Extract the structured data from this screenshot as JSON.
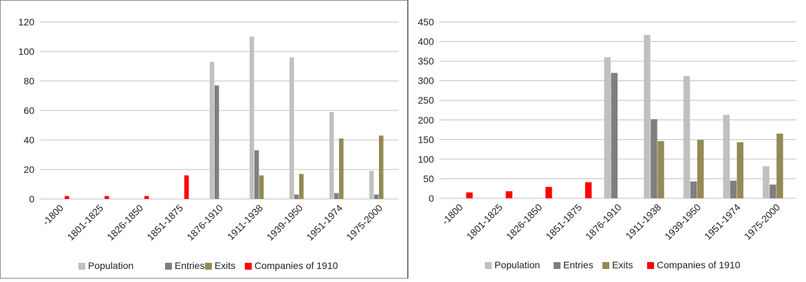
{
  "chart_data": [
    {
      "type": "bar",
      "categories": [
        "-1800",
        "1801-1825",
        "1826-1850",
        "1851-1875",
        "1876-1910",
        "1911-1938",
        "1939-1950",
        "1951-1974",
        "1975-2000"
      ],
      "ylim": [
        0,
        120
      ],
      "yticks": [
        0,
        20,
        40,
        60,
        80,
        100,
        120
      ],
      "grid": true,
      "legend": "bottom",
      "series": [
        {
          "name": "Population",
          "color": "#c0c0c0",
          "values": [
            0,
            0,
            0,
            0,
            93,
            110,
            96,
            59,
            19
          ]
        },
        {
          "name": "Entries",
          "color": "#7f7f7f",
          "values": [
            0,
            0,
            0,
            0,
            77,
            33,
            3,
            4,
            3
          ]
        },
        {
          "name": "Exits",
          "color": "#948a54",
          "values": [
            0,
            0,
            0,
            0,
            0,
            16,
            17,
            41,
            43
          ]
        },
        {
          "name": "Companies of 1910",
          "color": "#ff0000",
          "values": [
            2,
            2,
            2,
            16,
            0,
            0,
            0,
            0,
            0
          ]
        }
      ]
    },
    {
      "type": "bar",
      "categories": [
        "-1800",
        "1801-1825",
        "1826-1850",
        "1851-1875",
        "1876-1910",
        "1911-1938",
        "1939-1950",
        "1951-1974",
        "1975-2000"
      ],
      "ylim": [
        0,
        450
      ],
      "yticks": [
        0,
        50,
        100,
        150,
        200,
        250,
        300,
        350,
        400,
        450
      ],
      "grid": true,
      "legend": "bottom",
      "series": [
        {
          "name": "Population",
          "color": "#c0c0c0",
          "values": [
            0,
            0,
            0,
            0,
            360,
            417,
            312,
            213,
            82
          ]
        },
        {
          "name": "Entries",
          "color": "#7f7f7f",
          "values": [
            0,
            0,
            0,
            0,
            320,
            202,
            43,
            45,
            35
          ]
        },
        {
          "name": "Exits",
          "color": "#948a54",
          "values": [
            0,
            0,
            0,
            0,
            0,
            146,
            149,
            143,
            165
          ]
        },
        {
          "name": "Companies of 1910",
          "color": "#ff0000",
          "values": [
            15,
            18,
            29,
            41,
            0,
            0,
            0,
            0,
            0
          ]
        }
      ]
    }
  ]
}
